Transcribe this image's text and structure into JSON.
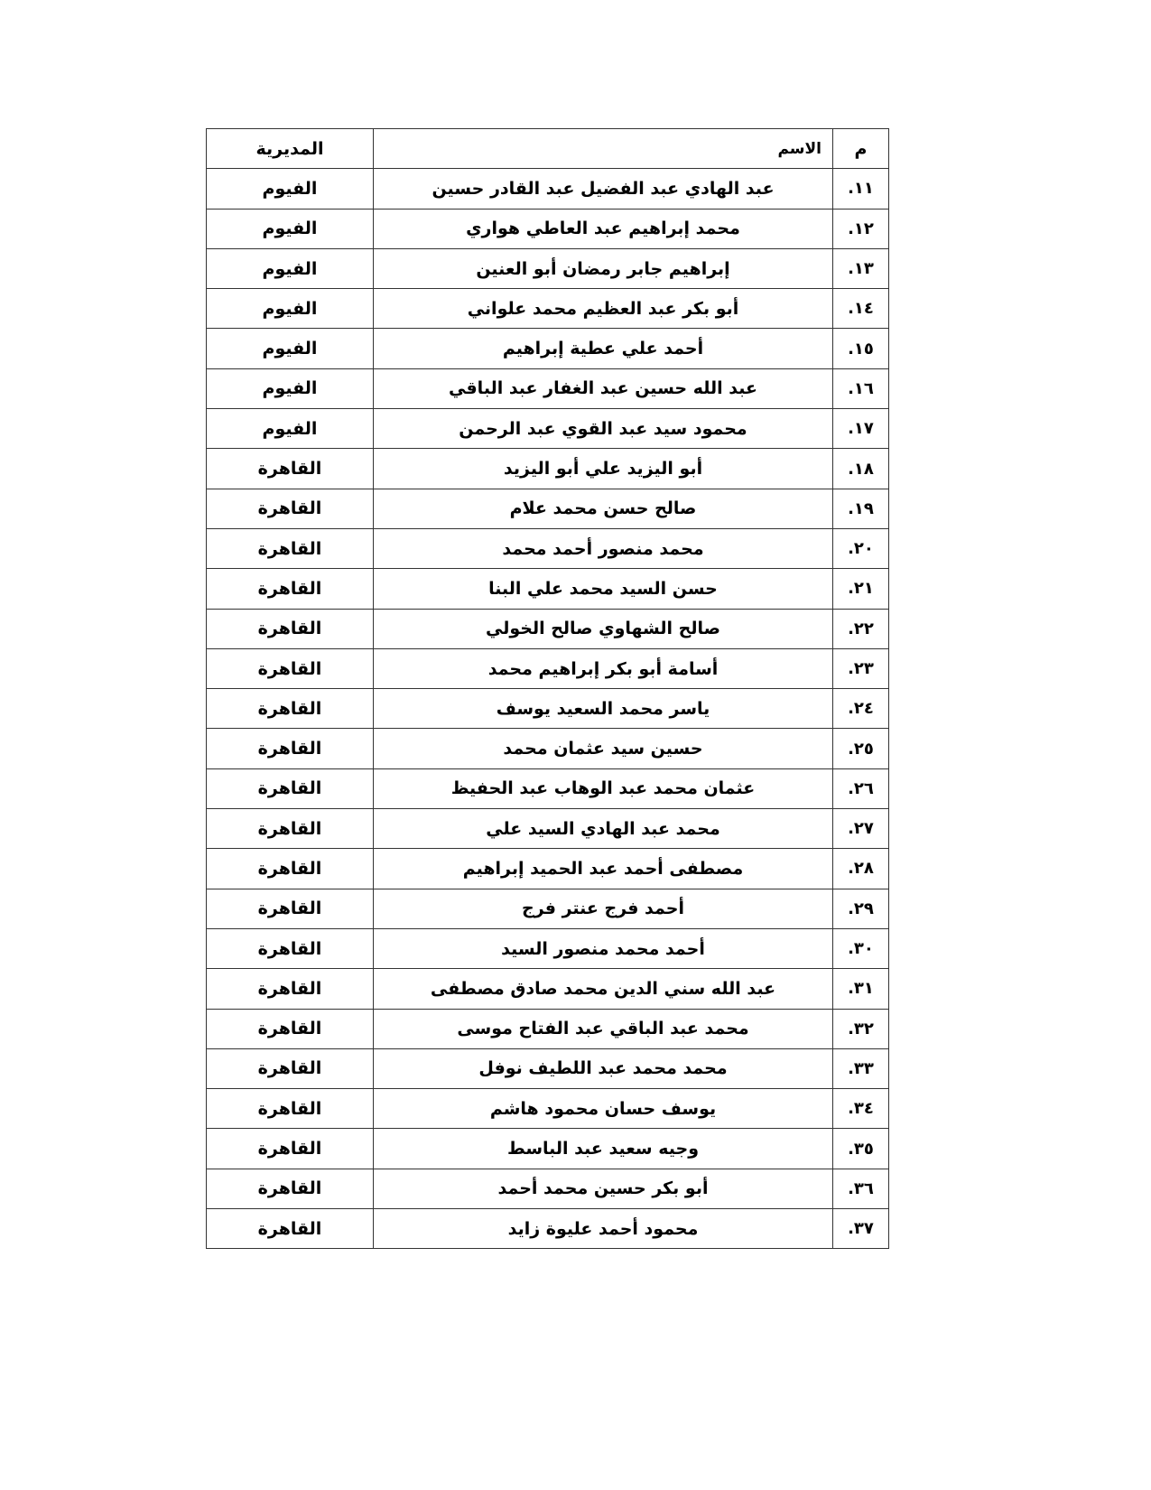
{
  "table": {
    "headers": {
      "num": "م",
      "name": "الاسم",
      "directorate": "المديرية"
    },
    "rows": [
      {
        "num": "١١.",
        "name": "عبد الهادي عبد الفضيل عبد القادر حسين",
        "directorate": "الفيوم"
      },
      {
        "num": "١٢.",
        "name": "محمد إبراهيم عبد العاطي هواري",
        "directorate": "الفيوم"
      },
      {
        "num": "١٣.",
        "name": "إبراهيم جابر رمضان أبو العنين",
        "directorate": "الفيوم"
      },
      {
        "num": "١٤.",
        "name": "أبو بكر عبد العظيم محمد علواني",
        "directorate": "الفيوم"
      },
      {
        "num": "١٥.",
        "name": "أحمد علي عطية إبراهيم",
        "directorate": "الفيوم"
      },
      {
        "num": "١٦.",
        "name": "عبد الله حسين عبد الغفار عبد الباقي",
        "directorate": "الفيوم"
      },
      {
        "num": "١٧.",
        "name": "محمود سيد عبد القوي عبد الرحمن",
        "directorate": "الفيوم"
      },
      {
        "num": "١٨.",
        "name": "أبو اليزيد علي أبو اليزيد",
        "directorate": "القاهرة"
      },
      {
        "num": "١٩.",
        "name": "صالح حسن محمد علام",
        "directorate": "القاهرة"
      },
      {
        "num": "٢٠.",
        "name": "محمد منصور أحمد محمد",
        "directorate": "القاهرة"
      },
      {
        "num": "٢١.",
        "name": "حسن السيد محمد علي البنا",
        "directorate": "القاهرة"
      },
      {
        "num": "٢٢.",
        "name": "صالح الشهاوي صالح الخولي",
        "directorate": "القاهرة"
      },
      {
        "num": "٢٣.",
        "name": "أسامة أبو بكر إبراهيم محمد",
        "directorate": "القاهرة"
      },
      {
        "num": "٢٤.",
        "name": "ياسر محمد السعيد يوسف",
        "directorate": "القاهرة"
      },
      {
        "num": "٢٥.",
        "name": "حسين سيد عثمان محمد",
        "directorate": "القاهرة"
      },
      {
        "num": "٢٦.",
        "name": "عثمان محمد عبد الوهاب عبد الحفيظ",
        "directorate": "القاهرة"
      },
      {
        "num": "٢٧.",
        "name": "محمد عبد الهادي السيد علي",
        "directorate": "القاهرة"
      },
      {
        "num": "٢٨.",
        "name": "مصطفى أحمد عبد الحميد إبراهيم",
        "directorate": "القاهرة"
      },
      {
        "num": "٢٩.",
        "name": "أحمد فرج عنتر فرج",
        "directorate": "القاهرة"
      },
      {
        "num": "٣٠.",
        "name": "أحمد محمد منصور السيد",
        "directorate": "القاهرة"
      },
      {
        "num": "٣١.",
        "name": "عبد الله سني الدين محمد صادق مصطفى",
        "directorate": "القاهرة"
      },
      {
        "num": "٣٢.",
        "name": "محمد عبد الباقي عبد الفتاح موسى",
        "directorate": "القاهرة"
      },
      {
        "num": "٣٣.",
        "name": "محمد محمد عبد اللطيف نوفل",
        "directorate": "القاهرة"
      },
      {
        "num": "٣٤.",
        "name": "يوسف حسان محمود هاشم",
        "directorate": "القاهرة"
      },
      {
        "num": "٣٥.",
        "name": "وجيه سعيد عبد الباسط",
        "directorate": "القاهرة"
      },
      {
        "num": "٣٦.",
        "name": "أبو بكر حسين محمد أحمد",
        "directorate": "القاهرة"
      },
      {
        "num": "٣٧.",
        "name": "محمود أحمد عليوة زايد",
        "directorate": "القاهرة"
      }
    ]
  }
}
